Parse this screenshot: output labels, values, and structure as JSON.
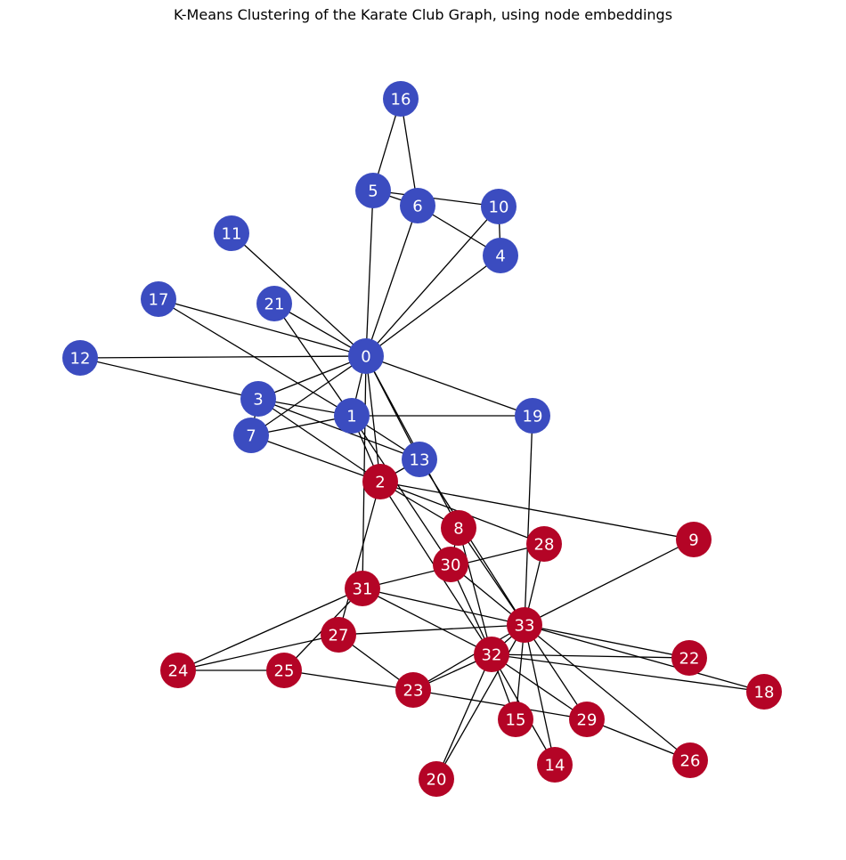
{
  "title": "K-Means Clustering of the Karate Club Graph, using node embeddings",
  "colors": {
    "cluster_0": "#3b4cc0",
    "cluster_1": "#b40426",
    "edge": "#000000",
    "label": "#ffffff"
  },
  "graph": {
    "nodes": [
      {
        "id": "0",
        "cluster": 0
      },
      {
        "id": "1",
        "cluster": 0
      },
      {
        "id": "2",
        "cluster": 1
      },
      {
        "id": "3",
        "cluster": 0
      },
      {
        "id": "4",
        "cluster": 0
      },
      {
        "id": "5",
        "cluster": 0
      },
      {
        "id": "6",
        "cluster": 0
      },
      {
        "id": "7",
        "cluster": 0
      },
      {
        "id": "8",
        "cluster": 1
      },
      {
        "id": "9",
        "cluster": 1
      },
      {
        "id": "10",
        "cluster": 0
      },
      {
        "id": "11",
        "cluster": 0
      },
      {
        "id": "12",
        "cluster": 0
      },
      {
        "id": "13",
        "cluster": 0
      },
      {
        "id": "14",
        "cluster": 1
      },
      {
        "id": "15",
        "cluster": 1
      },
      {
        "id": "16",
        "cluster": 0
      },
      {
        "id": "17",
        "cluster": 0
      },
      {
        "id": "18",
        "cluster": 1
      },
      {
        "id": "19",
        "cluster": 0
      },
      {
        "id": "20",
        "cluster": 1
      },
      {
        "id": "21",
        "cluster": 0
      },
      {
        "id": "22",
        "cluster": 1
      },
      {
        "id": "23",
        "cluster": 1
      },
      {
        "id": "24",
        "cluster": 1
      },
      {
        "id": "25",
        "cluster": 1
      },
      {
        "id": "26",
        "cluster": 1
      },
      {
        "id": "27",
        "cluster": 1
      },
      {
        "id": "28",
        "cluster": 1
      },
      {
        "id": "29",
        "cluster": 1
      },
      {
        "id": "30",
        "cluster": 1
      },
      {
        "id": "31",
        "cluster": 1
      },
      {
        "id": "32",
        "cluster": 1
      },
      {
        "id": "33",
        "cluster": 1
      }
    ],
    "edges": [
      [
        "0",
        "1"
      ],
      [
        "0",
        "2"
      ],
      [
        "0",
        "3"
      ],
      [
        "0",
        "4"
      ],
      [
        "0",
        "5"
      ],
      [
        "0",
        "6"
      ],
      [
        "0",
        "7"
      ],
      [
        "0",
        "8"
      ],
      [
        "0",
        "10"
      ],
      [
        "0",
        "11"
      ],
      [
        "0",
        "12"
      ],
      [
        "0",
        "13"
      ],
      [
        "0",
        "17"
      ],
      [
        "0",
        "19"
      ],
      [
        "0",
        "21"
      ],
      [
        "0",
        "31"
      ],
      [
        "1",
        "2"
      ],
      [
        "1",
        "3"
      ],
      [
        "1",
        "7"
      ],
      [
        "1",
        "13"
      ],
      [
        "1",
        "17"
      ],
      [
        "1",
        "19"
      ],
      [
        "1",
        "21"
      ],
      [
        "1",
        "30"
      ],
      [
        "2",
        "3"
      ],
      [
        "2",
        "7"
      ],
      [
        "2",
        "8"
      ],
      [
        "2",
        "9"
      ],
      [
        "2",
        "13"
      ],
      [
        "2",
        "27"
      ],
      [
        "2",
        "28"
      ],
      [
        "2",
        "32"
      ],
      [
        "3",
        "7"
      ],
      [
        "3",
        "12"
      ],
      [
        "3",
        "13"
      ],
      [
        "4",
        "6"
      ],
      [
        "4",
        "10"
      ],
      [
        "5",
        "6"
      ],
      [
        "5",
        "10"
      ],
      [
        "5",
        "16"
      ],
      [
        "6",
        "16"
      ],
      [
        "8",
        "30"
      ],
      [
        "8",
        "32"
      ],
      [
        "8",
        "33"
      ],
      [
        "9",
        "33"
      ],
      [
        "13",
        "33"
      ],
      [
        "14",
        "32"
      ],
      [
        "14",
        "33"
      ],
      [
        "15",
        "32"
      ],
      [
        "15",
        "33"
      ],
      [
        "18",
        "32"
      ],
      [
        "18",
        "33"
      ],
      [
        "19",
        "33"
      ],
      [
        "20",
        "32"
      ],
      [
        "20",
        "33"
      ],
      [
        "22",
        "32"
      ],
      [
        "22",
        "33"
      ],
      [
        "23",
        "25"
      ],
      [
        "23",
        "27"
      ],
      [
        "23",
        "29"
      ],
      [
        "23",
        "32"
      ],
      [
        "23",
        "33"
      ],
      [
        "24",
        "25"
      ],
      [
        "24",
        "27"
      ],
      [
        "24",
        "31"
      ],
      [
        "25",
        "31"
      ],
      [
        "26",
        "29"
      ],
      [
        "26",
        "33"
      ],
      [
        "27",
        "33"
      ],
      [
        "28",
        "31"
      ],
      [
        "28",
        "33"
      ],
      [
        "29",
        "32"
      ],
      [
        "29",
        "33"
      ],
      [
        "30",
        "32"
      ],
      [
        "30",
        "33"
      ],
      [
        "31",
        "32"
      ],
      [
        "31",
        "33"
      ],
      [
        "32",
        "33"
      ]
    ]
  }
}
